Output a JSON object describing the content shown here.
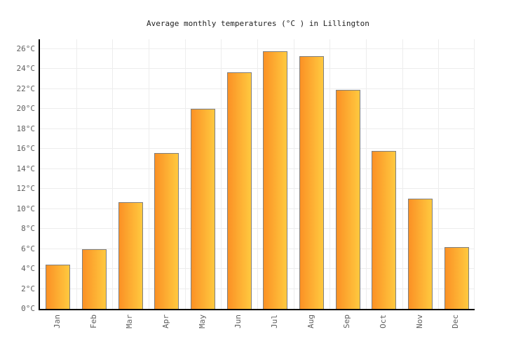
{
  "chart_data": {
    "type": "bar",
    "title": "Average monthly temperatures (°C ) in Lillington",
    "categories": [
      "Jan",
      "Feb",
      "Mar",
      "Apr",
      "May",
      "Jun",
      "Jul",
      "Aug",
      "Sep",
      "Oct",
      "Nov",
      "Dec"
    ],
    "values": [
      4.4,
      6.0,
      10.7,
      15.6,
      20.0,
      23.7,
      25.8,
      25.3,
      21.9,
      15.8,
      11.0,
      6.2
    ],
    "unit": "°C",
    "xlabel": "",
    "ylabel": "",
    "ylim": [
      0,
      26
    ],
    "ytick_step": 2,
    "ytick_labels": [
      "0°C",
      "2°C",
      "4°C",
      "6°C",
      "8°C",
      "10°C",
      "12°C",
      "14°C",
      "16°C",
      "18°C",
      "20°C",
      "22°C",
      "24°C",
      "26°C"
    ],
    "grid": true,
    "legend": "none",
    "colors": {
      "bar_gradient_left": "#fb9125",
      "bar_gradient_right": "#ffc93f",
      "bar_border": "#7f7f7f",
      "axis": "#000000",
      "grid": "#ededed",
      "tick_label": "#606060",
      "title": "#222222"
    }
  }
}
